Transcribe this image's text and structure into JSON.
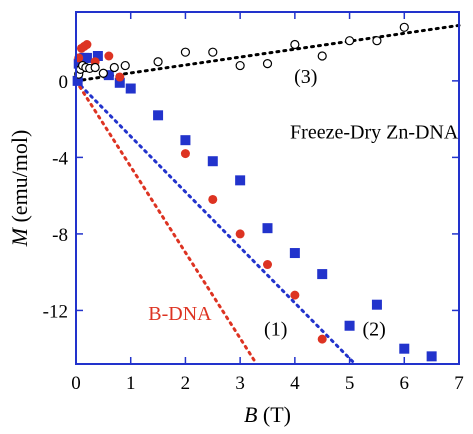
{
  "chart_data": {
    "type": "scatter",
    "xlabel": "B",
    "xunit": "(T)",
    "ylabel": "M",
    "yunit": "(emu/mol)",
    "xlim": [
      0,
      7
    ],
    "ylim": [
      -14.8,
      3.6
    ],
    "x_ticks": [
      0,
      1,
      2,
      3,
      4,
      5,
      6,
      7
    ],
    "y_ticks": [
      0,
      -4,
      -8,
      -12
    ],
    "y_tick_labels": [
      "0",
      "-4",
      "-8",
      "-12"
    ],
    "grid": false,
    "series": [
      {
        "marker": "square",
        "color": "#2233cc",
        "points": [
          [
            0.03,
            0.0
          ],
          [
            0.05,
            0.9
          ],
          [
            0.1,
            1.0
          ],
          [
            0.15,
            1.2
          ],
          [
            0.2,
            1.2
          ],
          [
            0.4,
            1.3
          ],
          [
            0.6,
            0.3
          ],
          [
            0.8,
            -0.1
          ],
          [
            1.0,
            -0.4
          ],
          [
            1.5,
            -1.8
          ],
          [
            2.0,
            -3.1
          ],
          [
            2.5,
            -4.2
          ],
          [
            3.0,
            -5.2
          ],
          [
            3.5,
            -7.7
          ],
          [
            4.0,
            -9.0
          ],
          [
            4.5,
            -10.1
          ],
          [
            5.0,
            -12.8
          ],
          [
            5.5,
            -11.7
          ],
          [
            6.0,
            -14.0
          ],
          [
            6.5,
            -14.4
          ]
        ]
      },
      {
        "marker": "circle",
        "color": "#dd3322",
        "points": [
          [
            0.05,
            1.2
          ],
          [
            0.1,
            1.7
          ],
          [
            0.15,
            1.8
          ],
          [
            0.2,
            1.9
          ],
          [
            0.35,
            1.0
          ],
          [
            0.6,
            1.3
          ],
          [
            0.8,
            0.2
          ],
          [
            2.0,
            -3.8
          ],
          [
            2.5,
            -6.2
          ],
          [
            3.0,
            -8.0
          ],
          [
            3.5,
            -9.6
          ],
          [
            4.0,
            -11.2
          ],
          [
            4.5,
            -13.5
          ]
        ]
      },
      {
        "marker": "open-circle",
        "color": "#000000",
        "points": [
          [
            0.05,
            0.35
          ],
          [
            0.08,
            0.6
          ],
          [
            0.12,
            0.8
          ],
          [
            0.18,
            0.7
          ],
          [
            0.25,
            0.65
          ],
          [
            0.35,
            0.7
          ],
          [
            0.5,
            0.4
          ],
          [
            0.7,
            0.7
          ],
          [
            0.9,
            0.8
          ],
          [
            1.5,
            1.0
          ],
          [
            2.0,
            1.5
          ],
          [
            2.5,
            1.5
          ],
          [
            3.0,
            0.8
          ],
          [
            3.5,
            0.9
          ],
          [
            4.0,
            1.9
          ],
          [
            4.5,
            1.3
          ],
          [
            5.0,
            2.1
          ],
          [
            5.5,
            2.1
          ],
          [
            6.0,
            2.8
          ]
        ]
      }
    ],
    "fit_lines": [
      {
        "label": "(3)",
        "color": "#000000",
        "from": [
          0,
          0
        ],
        "to": [
          7,
          2.9
        ]
      },
      {
        "label": "(2)",
        "color": "#2233cc",
        "from": [
          0,
          0
        ],
        "to": [
          5.1,
          -14.8
        ]
      },
      {
        "label": "(1)",
        "color": "#dd3322",
        "from": [
          0,
          0
        ],
        "to": [
          3.3,
          -14.8
        ]
      }
    ],
    "annotations": [
      {
        "id": "sample",
        "text": "Freeze-Dry Zn-DNA",
        "color": "#000000",
        "at": [
          5.45,
          -3.0
        ]
      },
      {
        "id": "bdna",
        "text": "B-DNA",
        "color": "#dd3322",
        "at": [
          1.9,
          -12.5
        ]
      },
      {
        "id": "label1",
        "text": "(1)",
        "color": "#000000",
        "at": [
          3.65,
          -13.3
        ]
      },
      {
        "id": "label2",
        "text": "(2)",
        "color": "#000000",
        "at": [
          5.45,
          -13.3
        ]
      },
      {
        "id": "label3",
        "text": "(3)",
        "color": "#000000",
        "at": [
          4.2,
          -0.1
        ]
      }
    ]
  }
}
